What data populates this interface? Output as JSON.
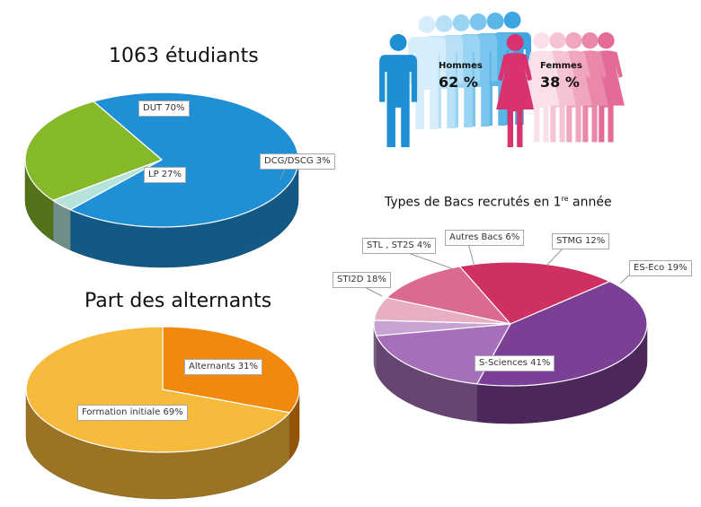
{
  "chart_data": [
    {
      "type": "pie",
      "title": "1063 étudiants",
      "slices": [
        {
          "label": "DUT 70%",
          "value": 70,
          "color": "#1f8fd6"
        },
        {
          "label": "DCG/DSCG 3%",
          "value": 3,
          "color": "#b5e3dc"
        },
        {
          "label": "LP 27%",
          "value": 27,
          "color": "#86b92a"
        }
      ]
    },
    {
      "type": "pie",
      "title": "Part des alternants",
      "slices": [
        {
          "label": "Alternants 31%",
          "value": 31,
          "color": "#f0890e"
        },
        {
          "label": "Formation initiale 69%",
          "value": 69,
          "color": "#f8ba3c"
        }
      ]
    },
    {
      "type": "pie",
      "title_main": "Types de Bacs recrutés en 1",
      "title_sup": "re",
      "title_end": " année",
      "slices": [
        {
          "label": "STMG 12%",
          "value": 12,
          "color": "#dc6a90"
        },
        {
          "label": "ES-Eco 19%",
          "value": 19,
          "color": "#cf3062"
        },
        {
          "label": "S-Sciences 41%",
          "value": 41,
          "color": "#7b3f95"
        },
        {
          "label": "STI2D 18%",
          "value": 18,
          "color": "#a56fba"
        },
        {
          "label": "STL , ST2S 4%",
          "value": 4,
          "color": "#c7a3d3"
        },
        {
          "label": "Autres Bacs 6%",
          "value": 6,
          "color": "#e8aec4"
        }
      ]
    }
  ],
  "gender": {
    "men_label": "Hommes",
    "men_value": "62 %",
    "women_label": "Femmes",
    "women_value": "38 %",
    "men_color": "#1e8fd3",
    "women_color": "#d9336f"
  }
}
